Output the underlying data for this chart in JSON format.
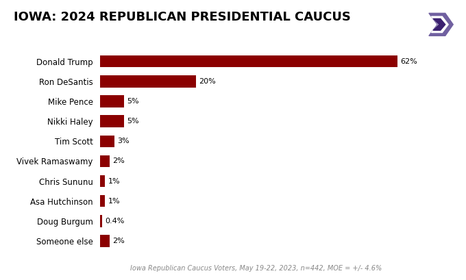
{
  "title": "IOWA: 2024 REPUBLICAN PRESIDENTIAL CAUCUS",
  "candidates": [
    "Donald Trump",
    "Ron DeSantis",
    "Mike Pence",
    "Nikki Haley",
    "Tim Scott",
    "Vivek Ramaswamy",
    "Chris Sununu",
    "Asa Hutchinson",
    "Doug Burgum",
    "Someone else"
  ],
  "values": [
    62,
    20,
    5,
    5,
    3,
    2,
    1,
    1,
    0.4,
    2
  ],
  "labels": [
    "62%",
    "20%",
    "5%",
    "5%",
    "3%",
    "2%",
    "1%",
    "1%",
    "0.4%",
    "2%"
  ],
  "bar_color": "#8B0000",
  "bg_color": "#FFFFFF",
  "footnote": "Iowa Republican Caucus Voters, May 19-22, 2023, n=442, MOE = +/- 4.6%",
  "xlim": [
    0,
    70
  ],
  "logo_bg": "#3B2070",
  "logo_text_color": "#FFFFFF",
  "logo_accent": "#7B5EA7"
}
